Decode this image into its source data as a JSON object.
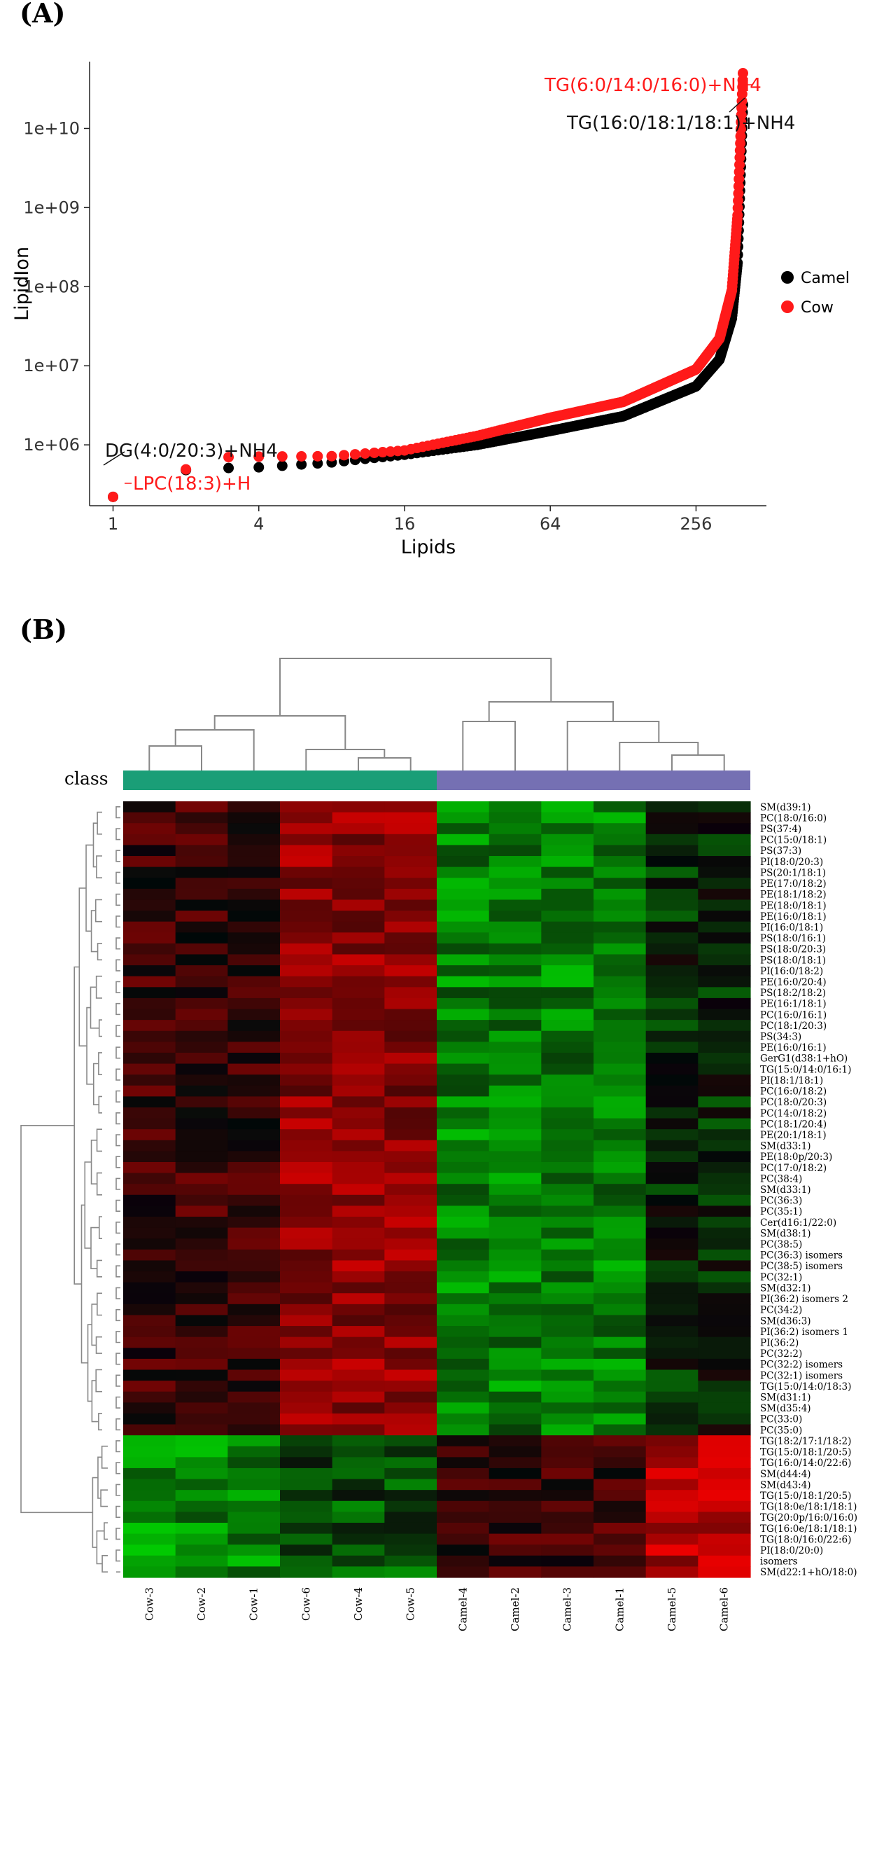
{
  "chart_data": [
    {
      "panel": "(A)",
      "type": "scatter",
      "xlabel": "Lipids",
      "ylabel": "LipidIon",
      "x_scale": "log2",
      "y_scale": "log10",
      "xlim": [
        0.8,
        500
      ],
      "ylim": [
        170000,
        70000000000
      ],
      "x_ticks": [
        1,
        4,
        16,
        64,
        256
      ],
      "x_tick_labels": [
        "1",
        "4",
        "16",
        "64",
        "256"
      ],
      "y_ticks": [
        1000000,
        10000000,
        100000000,
        1000000000,
        10000000000
      ],
      "y_tick_labels": [
        "1e+06",
        "1e+07",
        "1e+08",
        "1e+09",
        "1e+10"
      ],
      "legend_position": "right",
      "n_points": 400,
      "series": [
        {
          "name": "Camel",
          "color": "#000000",
          "x": [
            1,
            2,
            3,
            4,
            8,
            16,
            32,
            64,
            128,
            256,
            320,
            360,
            380,
            400
          ],
          "y": [
            220000,
            480000,
            510000,
            520000,
            600000,
            750000,
            1000000,
            1500000,
            2300000,
            5500000,
            12000000,
            40000000,
            200000000,
            20000000000
          ]
        },
        {
          "name": "Cow",
          "color": "#ff1a1a",
          "x": [
            1,
            2,
            3,
            4,
            8,
            16,
            32,
            64,
            128,
            256,
            320,
            360,
            380,
            400
          ],
          "y": [
            220000,
            490000,
            700000,
            710000,
            720000,
            850000,
            1300000,
            2200000,
            3500000,
            9000000,
            22000000,
            90000000,
            800000000,
            50000000000
          ]
        }
      ],
      "annotations": [
        {
          "text": "TG(6:0/14:0/16:0)+NH4",
          "color": "#ff1a1a"
        },
        {
          "text": "TG(16:0/18:1/18:1)+NH4",
          "color": "#111111"
        },
        {
          "text": "DG(4:0/20:3)+NH4",
          "color": "#111111"
        },
        {
          "text": "LPC(18:3)+H",
          "color": "#ff1a1a"
        }
      ]
    },
    {
      "panel": "(B)",
      "type": "heatmap",
      "class_label": "class",
      "class_colors": {
        "Cow": "#1a9e77",
        "Camel": "#7570b3"
      },
      "color_scale": {
        "low": "#00ff00",
        "mid": "#000000",
        "high": "#ff0000"
      },
      "columns": [
        "Cow-3",
        "Cow-2",
        "Cow-1",
        "Cow-6",
        "Cow-4",
        "Cow-5",
        "Camel-4",
        "Camel-2",
        "Camel-3",
        "Camel-1",
        "Camel-5",
        "Camel-6"
      ],
      "column_groups": [
        "Cow",
        "Cow",
        "Cow",
        "Cow",
        "Cow",
        "Cow",
        "Camel",
        "Camel",
        "Camel",
        "Camel",
        "Camel",
        "Camel"
      ],
      "rows": [
        "SM(d39:1)",
        "PC(18:0/16:0)",
        "PS(37:4)",
        "PC(15:0/18:1)",
        "PS(37:3)",
        "PI(18:0/20:3)",
        "PS(20:1/18:1)",
        "PE(17:0/18:2)",
        "PE(18:1/18:2)",
        "PE(18:0/18:1)",
        "PE(16:0/18:1)",
        "PI(16:0/18:1)",
        "PS(18:0/16:1)",
        "PS(18:0/20:3)",
        "PS(18:0/18:1)",
        "PI(16:0/18:2)",
        "PE(16:0/20:4)",
        "PS(18:2/18:2)",
        "PE(16:1/18:1)",
        "PC(16:0/16:1)",
        "PC(18:1/20:3)",
        "PS(34:3)",
        "PE(16:0/16:1)",
        "GerG1(d38:1+hO)",
        "TG(15:0/14:0/16:1)",
        "PI(18:1/18:1)",
        "PC(16:0/18:2)",
        "PC(18:0/20:3)",
        "PC(14:0/18:2)",
        "PC(18:1/20:4)",
        "PE(20:1/18:1)",
        "SM(d33:1)",
        "PE(18:0p/20:3)",
        "PC(17:0/18:2)",
        "PC(38:4)",
        "SM(d33:1)",
        "PC(36:3)",
        "PC(35:1)",
        "Cer(d16:1/22:0)",
        "SM(d38:1)",
        "PC(38:5)",
        "PC(36:3) isomers",
        "PC(38:5) isomers",
        "PC(32:1)",
        "SM(d32:1)",
        "PI(36:2) isomers 2",
        "PC(34:2)",
        "SM(d36:3)",
        "PI(36:2) isomers 1",
        "PI(36:2)",
        "PC(32:2)",
        "PC(32:2) isomers",
        "PC(32:1) isomers",
        "TG(15:0/14:0/18:3)",
        "SM(d31:1)",
        "SM(d35:4)",
        "PC(33:0)",
        "PC(35:0)",
        "TG(18:2/17:1/18:2)",
        "TG(15:0/18:1/20:5)",
        "TG(16:0/14:0/22:6)",
        "SM(d44:4)",
        "SM(d43:4)",
        "TG(15:0/18:1/20:5)",
        "TG(18:0e/18:1/18:1)",
        "TG(20:0p/16:0/16:0)",
        "TG(16:0e/18:1/18:1)",
        "TG(18:0/16:0/22:6)",
        "PI(18:0/20:0)",
        "isomers",
        "SM(d22:1+hO/18:0)"
      ]
    }
  ]
}
